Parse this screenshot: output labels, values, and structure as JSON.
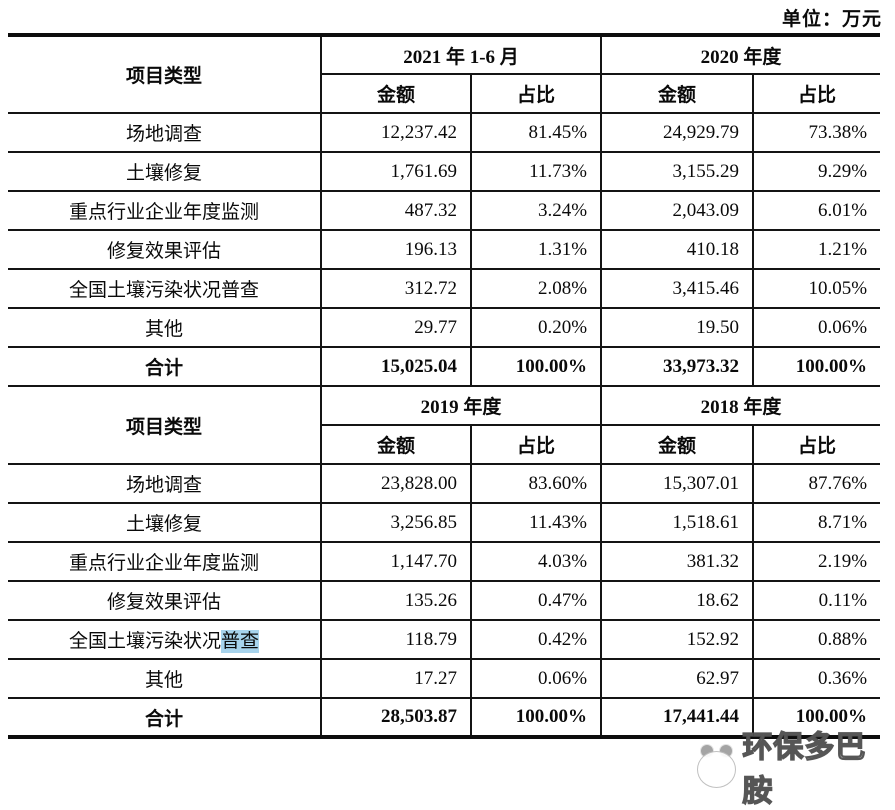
{
  "unit_label": "单位：万元",
  "highlight_color": "#a7d3ec",
  "table": {
    "project_type_label": "项目类型",
    "amount_label": "金额",
    "share_label": "占比",
    "total_label": "合计",
    "sections": [
      {
        "periods": [
          "2021 年 1-6 月",
          "2020 年度"
        ],
        "rows": [
          {
            "label": "场地调查",
            "values": [
              "12,237.42",
              "81.45%",
              "24,929.79",
              "73.38%"
            ]
          },
          {
            "label": "土壤修复",
            "values": [
              "1,761.69",
              "11.73%",
              "3,155.29",
              "9.29%"
            ]
          },
          {
            "label": "重点行业企业年度监测",
            "values": [
              "487.32",
              "3.24%",
              "2,043.09",
              "6.01%"
            ]
          },
          {
            "label": "修复效果评估",
            "values": [
              "196.13",
              "1.31%",
              "410.18",
              "1.21%"
            ]
          },
          {
            "label": "全国土壤污染状况普查",
            "values": [
              "312.72",
              "2.08%",
              "3,415.46",
              "10.05%"
            ]
          },
          {
            "label": "其他",
            "values": [
              "29.77",
              "0.20%",
              "19.50",
              "0.06%"
            ]
          }
        ],
        "total_values": [
          "15,025.04",
          "100.00%",
          "33,973.32",
          "100.00%"
        ]
      },
      {
        "periods": [
          "2019 年度",
          "2018 年度"
        ],
        "rows": [
          {
            "label": "场地调查",
            "values": [
              "23,828.00",
              "83.60%",
              "15,307.01",
              "87.76%"
            ]
          },
          {
            "label": "土壤修复",
            "values": [
              "3,256.85",
              "11.43%",
              "1,518.61",
              "8.71%"
            ]
          },
          {
            "label": "重点行业企业年度监测",
            "values": [
              "1,147.70",
              "4.03%",
              "381.32",
              "2.19%"
            ]
          },
          {
            "label": "修复效果评估",
            "values": [
              "135.26",
              "0.47%",
              "18.62",
              "0.11%"
            ]
          },
          {
            "label": "全国土壤污染状况普查",
            "highlight_suffix": "普查",
            "values": [
              "118.79",
              "0.42%",
              "152.92",
              "0.88%"
            ]
          },
          {
            "label": "其他",
            "values": [
              "17.27",
              "0.06%",
              "62.97",
              "0.36%"
            ]
          }
        ],
        "total_values": [
          "28,503.87",
          "100.00%",
          "17,441.44",
          "100.00%"
        ]
      }
    ]
  },
  "watermark": {
    "text": "环保多巴胺"
  }
}
